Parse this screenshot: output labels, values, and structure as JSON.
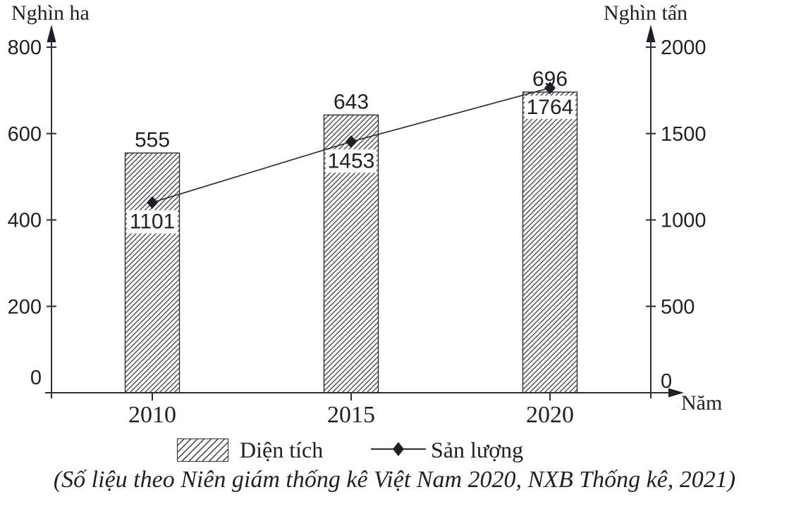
{
  "chart_data": {
    "type": "bar+line",
    "categories": [
      "2010",
      "2015",
      "2020"
    ],
    "series": [
      {
        "name": "Diện tích",
        "type": "bar",
        "axis": "left",
        "values": [
          555,
          643,
          696
        ]
      },
      {
        "name": "Sản lượng",
        "type": "line",
        "axis": "right",
        "values": [
          1101,
          1453,
          1764
        ]
      }
    ],
    "left_axis": {
      "title": "Nghìn ha",
      "ticks": [
        0,
        200,
        400,
        600,
        800
      ],
      "max": 800
    },
    "right_axis": {
      "title": "Nghìn tấn",
      "ticks": [
        0,
        500,
        1000,
        1500,
        2000
      ],
      "max": 2000
    },
    "x_axis": {
      "title": "Năm"
    },
    "legend": [
      {
        "label": "Diện tích",
        "swatch": "hatched-bar"
      },
      {
        "label": "Sản lượng",
        "swatch": "line-diamond-marker"
      }
    ],
    "source": "(Số liệu theo Niên giám thống kê Việt Nam 2020, NXB Thống kê, 2021)",
    "grid": "off",
    "legend_position": "bottom",
    "colors": {
      "ink": "#1f1f29",
      "stroke": "#2e2e36",
      "hatch": "#3c3c42",
      "bar_fill": "#ffffff"
    }
  }
}
